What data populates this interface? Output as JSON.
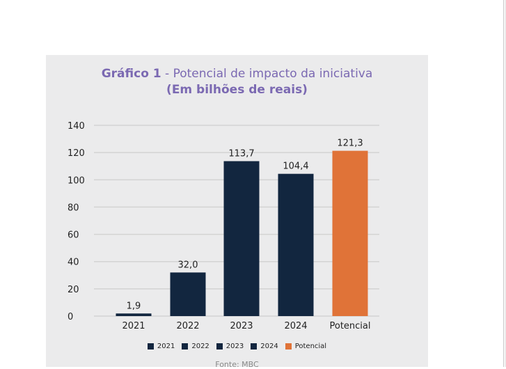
{
  "title": {
    "prefix": "Gráfico 1",
    "separator": " - ",
    "main": "Potencial de impacto da iniciativa",
    "subtitle": "(Em bilhões de reais)"
  },
  "source": "Fonte: MBC",
  "colors": {
    "series_dark": "#12263f",
    "series_potential": "#e07338",
    "title": "#7b69b2",
    "panel_bg": "#ebebec",
    "grid": "#d3d3d3"
  },
  "chart_data": {
    "type": "bar",
    "categories": [
      "2021",
      "2022",
      "2023",
      "2024",
      "Potencial"
    ],
    "values": [
      1.9,
      32.0,
      113.7,
      104.4,
      121.3
    ],
    "value_labels": [
      "1,9",
      "32,0",
      "113,7",
      "104,4",
      "121,3"
    ],
    "bar_colors": [
      "#12263f",
      "#12263f",
      "#12263f",
      "#12263f",
      "#e07338"
    ],
    "yticks": [
      0,
      20,
      40,
      60,
      80,
      100,
      120,
      140
    ],
    "ylim": [
      0,
      140
    ],
    "grid": true,
    "legend": {
      "placement": "bottom",
      "entries": [
        {
          "label": "2021",
          "color": "#12263f"
        },
        {
          "label": "2022",
          "color": "#12263f"
        },
        {
          "label": "2023",
          "color": "#12263f"
        },
        {
          "label": "2024",
          "color": "#12263f"
        },
        {
          "label": "Potencial",
          "color": "#e07338"
        }
      ]
    }
  }
}
